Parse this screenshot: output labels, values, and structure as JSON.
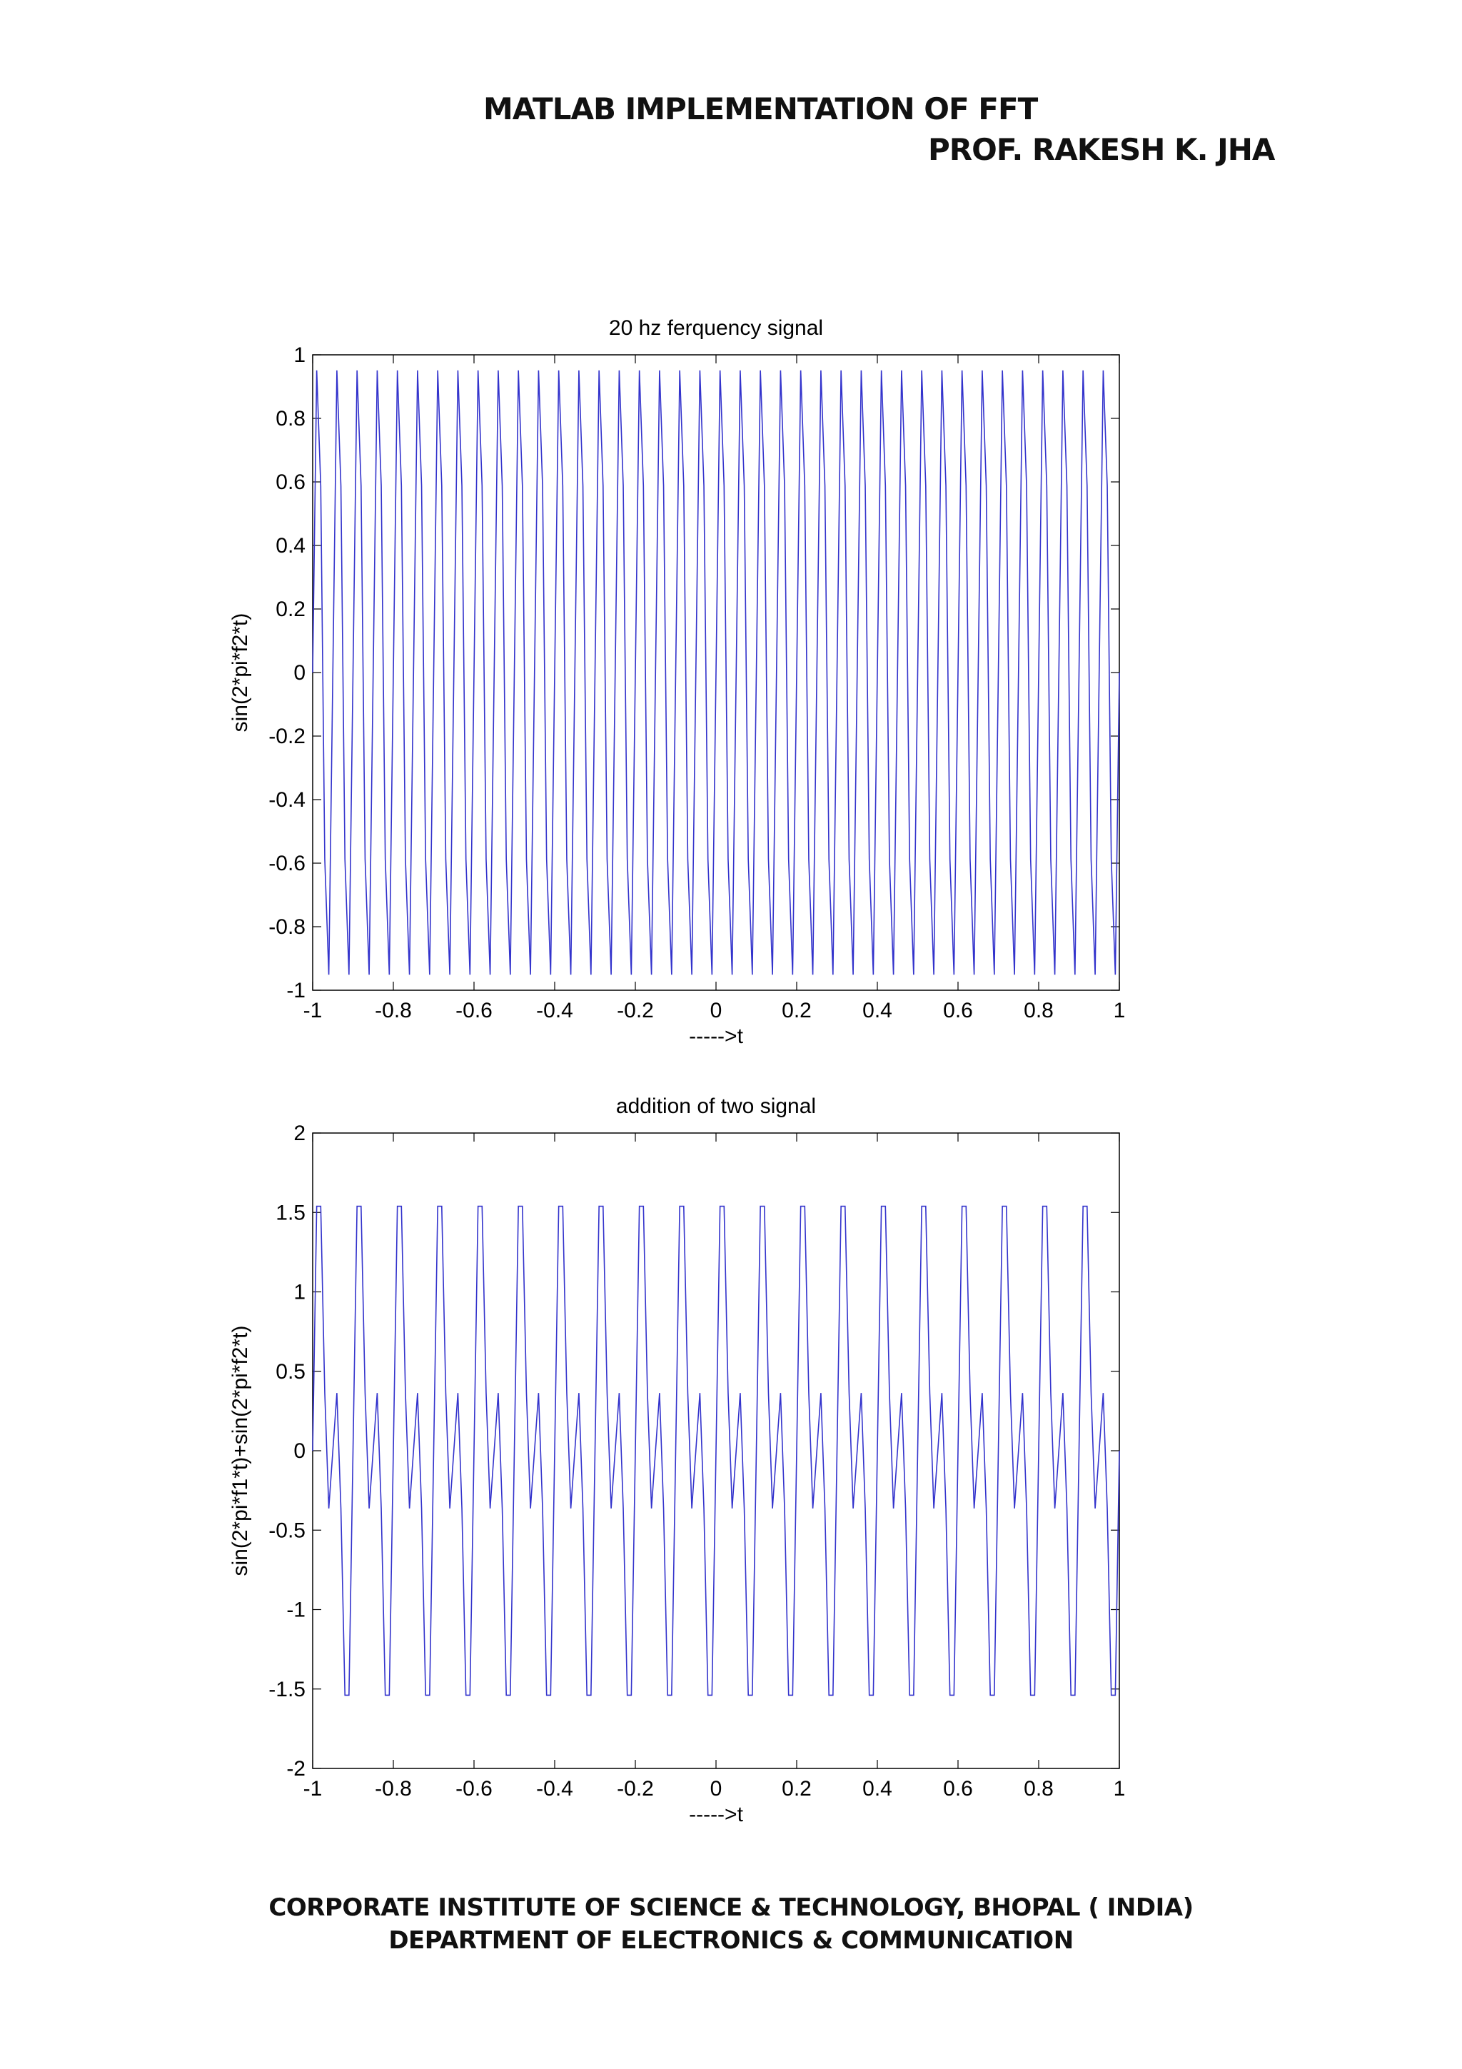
{
  "document": {
    "title": "MATLAB IMPLEMENTATION OF FFT",
    "author": "PROF. RAKESH K. JHA",
    "footer_line1": "CORPORATE INSTITUTE OF SCIENCE & TECHNOLOGY, BHOPAL ( INDIA)",
    "footer_line2": "DEPARTMENT OF ELECTRONICS & COMMUNICATION"
  },
  "colors": {
    "line": "#3333cc",
    "axis": "#000000",
    "background": "#ffffff"
  },
  "chart_data": [
    {
      "type": "line",
      "title": "20 hz ferquency signal",
      "xlabel": "----->t",
      "ylabel": "sin(2*pi*f2*t)",
      "xlim": [
        -1,
        1
      ],
      "ylim": [
        -1,
        1
      ],
      "xticks": [
        -1,
        -0.8,
        -0.6,
        -0.4,
        -0.2,
        0,
        0.2,
        0.4,
        0.6,
        0.8,
        1
      ],
      "xtick_labels": [
        "-1",
        "-0.8",
        "-0.6",
        "-0.4",
        "-0.2",
        "0",
        "0.2",
        "0.4",
        "0.6",
        "0.8",
        "1"
      ],
      "yticks": [
        -1,
        -0.8,
        -0.6,
        -0.4,
        -0.2,
        0,
        0.2,
        0.4,
        0.6,
        0.8,
        1
      ],
      "ytick_labels": [
        "-1",
        "-0.8",
        "-0.6",
        "-0.4",
        "-0.2",
        "0",
        "0.2",
        "0.4",
        "0.6",
        "0.8",
        "1"
      ],
      "grid": false,
      "series": [
        {
          "function": "sin(2*pi*f2*t)",
          "f2": 20,
          "t_step": 0.01,
          "t_range": [
            -1,
            1
          ]
        }
      ]
    },
    {
      "type": "line",
      "title": "addition of two  signal",
      "xlabel": "----->t",
      "ylabel": "sin(2*pi*f1*t)+sin(2*pi*f2*t)",
      "xlim": [
        -1,
        1
      ],
      "ylim": [
        -2,
        2
      ],
      "xticks": [
        -1,
        -0.8,
        -0.6,
        -0.4,
        -0.2,
        0,
        0.2,
        0.4,
        0.6,
        0.8,
        1
      ],
      "xtick_labels": [
        "-1",
        "-0.8",
        "-0.6",
        "-0.4",
        "-0.2",
        "0",
        "0.2",
        "0.4",
        "0.6",
        "0.8",
        "1"
      ],
      "yticks": [
        -2,
        -1.5,
        -1,
        -0.5,
        0,
        0.5,
        1,
        1.5,
        2
      ],
      "ytick_labels": [
        "-2",
        "-1.5",
        "-1",
        "-0.5",
        "0",
        "0.5",
        "1",
        "1.5",
        "2"
      ],
      "grid": false,
      "series": [
        {
          "function": "sin(2*pi*f1*t)+sin(2*pi*f2*t)",
          "f1": 10,
          "f2": 20,
          "t_step": 0.01,
          "t_range": [
            -1,
            1
          ]
        }
      ]
    }
  ]
}
